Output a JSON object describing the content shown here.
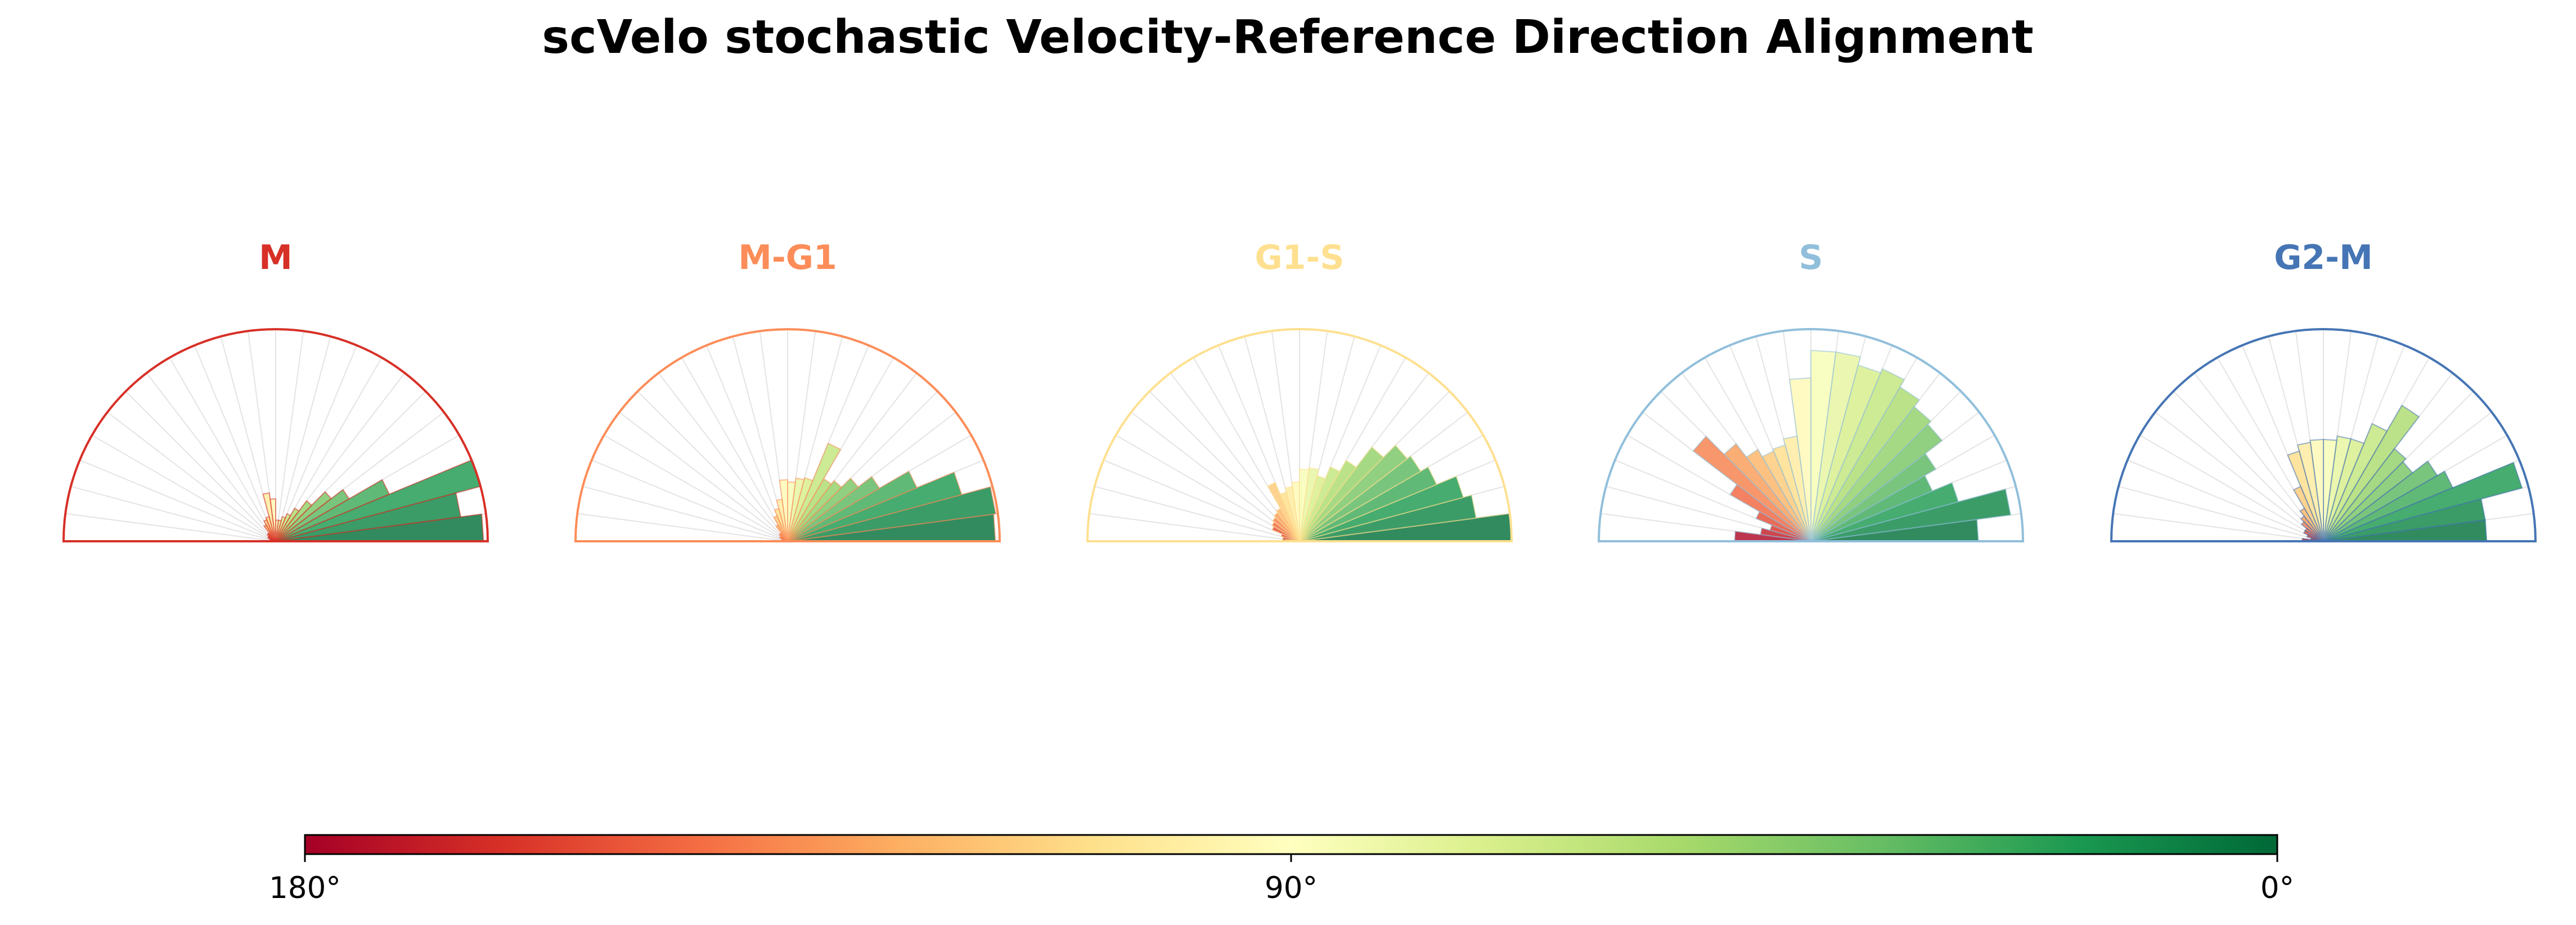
{
  "chart_data": {
    "type": "polar-histogram",
    "title": "scVelo stochastic Velocity-Reference Direction Alignment",
    "angle_range_deg": [
      0,
      180
    ],
    "bin_width_deg": 7.5,
    "colormap": "RdYlGn (180° red → 90° yellow → 0° green)",
    "panels": [
      {
        "name": "M",
        "color": "#d73027",
        "r_max": 1.0,
        "values": [
          0.98,
          0.88,
          1.0,
          0.58,
          0.4,
          0.33,
          0.24,
          0.18,
          0.14,
          0.12,
          0.1,
          0.1,
          0.2,
          0.23,
          0.12,
          0.11,
          0.09,
          0.05,
          0.05,
          0.04,
          0.04,
          0.03,
          0.02,
          0.02
        ]
      },
      {
        "name": "M-G1",
        "color": "#fc8d59",
        "r_max": 1.0,
        "values": [
          0.98,
          0.99,
          0.85,
          0.66,
          0.5,
          0.42,
          0.36,
          0.34,
          0.5,
          0.31,
          0.3,
          0.28,
          0.29,
          0.2,
          0.16,
          0.13,
          0.09,
          0.05,
          0.05,
          0.04,
          0.04,
          0.03,
          0.02,
          0.02
        ]
      },
      {
        "name": "G1-S",
        "color": "#fee090",
        "r_max": 1.0,
        "values": [
          1.0,
          0.84,
          0.8,
          0.7,
          0.66,
          0.64,
          0.56,
          0.44,
          0.38,
          0.32,
          0.35,
          0.34,
          0.28,
          0.26,
          0.24,
          0.3,
          0.18,
          0.17,
          0.16,
          0.15,
          0.14,
          0.09,
          0.08,
          0.08
        ]
      },
      {
        "name": "S",
        "color": "#91bfdb",
        "r_max": 1.0,
        "values": [
          0.79,
          0.95,
          0.72,
          0.62,
          0.68,
          0.78,
          0.8,
          0.84,
          0.88,
          0.86,
          0.9,
          0.9,
          0.77,
          0.5,
          0.47,
          0.46,
          0.5,
          0.58,
          0.7,
          0.44,
          0.28,
          0.2,
          0.24,
          0.36
        ]
      },
      {
        "name": "G2-M",
        "color": "#4575b4",
        "r_max": 1.0,
        "values": [
          0.77,
          0.77,
          0.97,
          0.66,
          0.62,
          0.53,
          0.55,
          0.74,
          0.6,
          0.5,
          0.5,
          0.48,
          0.48,
          0.47,
          0.44,
          0.28,
          0.18,
          0.15,
          0.13,
          0.1,
          0.1,
          0.08,
          0.06,
          0.1
        ]
      }
    ],
    "colorbar": {
      "ticks": [
        "180°",
        "90°",
        "0°"
      ],
      "tick_values_deg": [
        180,
        90,
        0
      ]
    }
  }
}
